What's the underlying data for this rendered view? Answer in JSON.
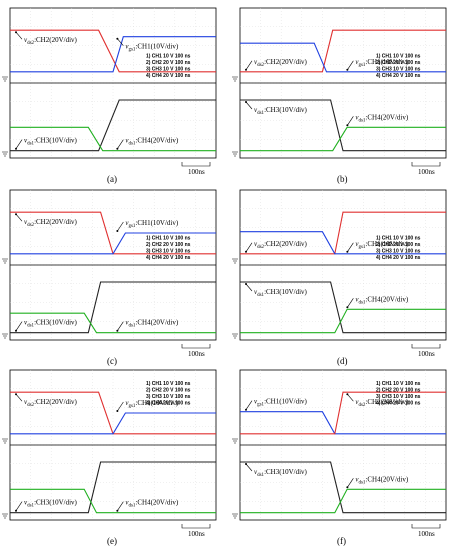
{
  "chart_data": [
    {
      "type": "line",
      "panel": "(a)",
      "time_scale": "100ns",
      "legend": [
        "1) CH1  10  V   100 ns",
        "2) CH2  20  V   100 ns",
        "3) CH3  10  V   100 ns",
        "4) CH4  20  V   100 ns"
      ],
      "channels": [
        {
          "name": "CH2",
          "color": "#e03030",
          "label": "v_{ds2}:CH2(20V/div)",
          "pane": "top",
          "levels": [
            0.72,
            0.72,
            0.08,
            0.08
          ],
          "t": [
            0,
            0.43,
            0.53,
            1
          ]
        },
        {
          "name": "CH1",
          "color": "#2040e0",
          "label": "v_{gs1}:CH1(10V/div)",
          "pane": "top",
          "levels": [
            0.08,
            0.08,
            0.62,
            0.62
          ],
          "t": [
            0,
            0.5,
            0.55,
            1
          ]
        },
        {
          "name": "CH3",
          "color": "#222222",
          "label": "v_{ds1}:CH3(10V/div)",
          "pane": "bottom",
          "levels": [
            0.02,
            0.02,
            0.8,
            0.8
          ],
          "t": [
            0,
            0.43,
            0.53,
            1
          ]
        },
        {
          "name": "CH4",
          "color": "#20b020",
          "label": "v_{ds1}:CH4(20V/div)",
          "pane": "bottom",
          "levels": [
            0.38,
            0.38,
            0.02,
            0.02
          ],
          "t": [
            0,
            0.38,
            0.45,
            1
          ]
        }
      ]
    },
    {
      "type": "line",
      "panel": "(b)",
      "time_scale": "100ns",
      "legend": [
        "1) CH1  10  V   100 ns",
        "2) CH2  20  V   100 ns",
        "3) CH3  10  V   100 ns",
        "4) CH4  20  V   100 ns"
      ],
      "channels": [
        {
          "name": "CH2",
          "color": "#e03030",
          "label": "v_{ds2}:CH2(20V/div)",
          "pane": "top",
          "levels": [
            0.08,
            0.08,
            0.72,
            0.72
          ],
          "t": [
            0,
            0.4,
            0.45,
            1
          ]
        },
        {
          "name": "CH1",
          "color": "#2040e0",
          "label": "v_{gs1}:CH1(10V/div)",
          "pane": "top",
          "levels": [
            0.52,
            0.52,
            0.08,
            0.08
          ],
          "t": [
            0,
            0.36,
            0.42,
            1
          ]
        },
        {
          "name": "CH3",
          "color": "#222222",
          "label": "v_{ds1}:CH3(10V/div)",
          "pane": "bottom",
          "levels": [
            0.8,
            0.8,
            0.02,
            0.02
          ],
          "t": [
            0,
            0.44,
            0.5,
            1
          ]
        },
        {
          "name": "CH4",
          "color": "#20b020",
          "label": "v_{ds1}:CH4(20V/div)",
          "pane": "bottom",
          "levels": [
            0.02,
            0.02,
            0.38,
            0.38
          ],
          "t": [
            0,
            0.45,
            0.52,
            1
          ]
        }
      ]
    },
    {
      "type": "line",
      "panel": "(c)",
      "time_scale": "100ns",
      "legend": [
        "1) CH1  10  V   100 ns",
        "2) CH2  20  V   100 ns",
        "3) CH3  10  V   100 ns",
        "4) CH4  20  V   100 ns"
      ],
      "channels": [
        {
          "name": "CH2",
          "color": "#e03030",
          "label": "v_{ds2}:CH2(20V/div)",
          "pane": "top",
          "levels": [
            0.72,
            0.72,
            0.08,
            0.08
          ],
          "t": [
            0,
            0.44,
            0.5,
            1
          ]
        },
        {
          "name": "CH1",
          "color": "#2040e0",
          "label": "v_{gs1}:CH1(10V/div)",
          "pane": "top",
          "levels": [
            0.08,
            0.08,
            0.4,
            0.4
          ],
          "t": [
            0,
            0.5,
            0.56,
            1
          ]
        },
        {
          "name": "CH3",
          "color": "#222222",
          "label": "v_{ds1}:CH3(10V/div)",
          "pane": "bottom",
          "levels": [
            0.02,
            0.02,
            0.8,
            0.8
          ],
          "t": [
            0,
            0.38,
            0.44,
            1
          ]
        },
        {
          "name": "CH4",
          "color": "#20b020",
          "label": "v_{ds1}:CH4(20V/div)",
          "pane": "bottom",
          "levels": [
            0.32,
            0.32,
            0.02,
            0.02
          ],
          "t": [
            0,
            0.36,
            0.42,
            1
          ]
        }
      ]
    },
    {
      "type": "line",
      "panel": "(d)",
      "time_scale": "100ns",
      "legend": [
        "1) CH1  10  V   100 ns",
        "2) CH2  20  V   100 ns",
        "3) CH3  10  V   100 ns",
        "4) CH4  20  V   100 ns"
      ],
      "channels": [
        {
          "name": "CH2",
          "color": "#e03030",
          "label": "v_{ds2}:CH2(20V/div)",
          "pane": "top",
          "levels": [
            0.08,
            0.08,
            0.72,
            0.72
          ],
          "t": [
            0,
            0.46,
            0.5,
            1
          ]
        },
        {
          "name": "CH1",
          "color": "#2040e0",
          "label": "v_{gs1}:CH1(10V/div)",
          "pane": "top",
          "levels": [
            0.42,
            0.42,
            0.08,
            0.08
          ],
          "t": [
            0,
            0.4,
            0.46,
            1
          ]
        },
        {
          "name": "CH3",
          "color": "#222222",
          "label": "v_{ds1}:CH3(10V/div)",
          "pane": "bottom",
          "levels": [
            0.8,
            0.8,
            0.02,
            0.02
          ],
          "t": [
            0,
            0.44,
            0.5,
            1
          ]
        },
        {
          "name": "CH4",
          "color": "#20b020",
          "label": "v_{ds1}:CH4(20V/div)",
          "pane": "bottom",
          "levels": [
            0.02,
            0.02,
            0.38,
            0.38
          ],
          "t": [
            0,
            0.46,
            0.52,
            1
          ]
        }
      ]
    },
    {
      "type": "line",
      "panel": "(e)",
      "time_scale": "100ns",
      "legend": [
        "1) CH1  10  V   100 ns",
        "2) CH2  20  V   100 ns",
        "3) CH3  10  V   100 ns",
        "4) CH4  20  V   100 ns"
      ],
      "channels": [
        {
          "name": "CH2",
          "color": "#e03030",
          "label": "v_{ds2}:CH2(20V/div)",
          "pane": "top",
          "levels": [
            0.72,
            0.72,
            0.08,
            0.08
          ],
          "t": [
            0,
            0.43,
            0.5,
            1
          ]
        },
        {
          "name": "CH1",
          "color": "#2040e0",
          "label": "v_{gs1}:CH1(10V/div)",
          "pane": "top",
          "levels": [
            0.08,
            0.08,
            0.4,
            0.4
          ],
          "t": [
            0,
            0.5,
            0.56,
            1
          ]
        },
        {
          "name": "CH3",
          "color": "#222222",
          "label": "v_{ds1}:CH3(10V/div)",
          "pane": "bottom",
          "levels": [
            0.02,
            0.02,
            0.8,
            0.8
          ],
          "t": [
            0,
            0.38,
            0.44,
            1
          ]
        },
        {
          "name": "CH4",
          "color": "#20b020",
          "label": "v_{ds1}:CH4(20V/div)",
          "pane": "bottom",
          "levels": [
            0.38,
            0.38,
            0.02,
            0.02
          ],
          "t": [
            0,
            0.36,
            0.42,
            1
          ]
        }
      ]
    },
    {
      "type": "line",
      "panel": "(f)",
      "time_scale": "100ns",
      "legend": [
        "1) CH1  10  V   100 ns",
        "2) CH2  20  V   100 ns",
        "3) CH3  10  V   100 ns",
        "4) CH4  20  V   100 ns"
      ],
      "channels": [
        {
          "name": "CH1",
          "color": "#2040e0",
          "label": "v_{gs1}:CH1(10V/div)",
          "pane": "top",
          "levels": [
            0.42,
            0.42,
            0.08,
            0.08
          ],
          "t": [
            0,
            0.4,
            0.46,
            1
          ]
        },
        {
          "name": "CH2",
          "color": "#e03030",
          "label": "v_{ds2}:CH2(20V/div)",
          "pane": "top",
          "levels": [
            0.08,
            0.08,
            0.72,
            0.72
          ],
          "t": [
            0,
            0.46,
            0.5,
            1
          ]
        },
        {
          "name": "CH3",
          "color": "#222222",
          "label": "v_{ds1}:CH3(10V/div)",
          "pane": "bottom",
          "levels": [
            0.8,
            0.8,
            0.02,
            0.02
          ],
          "t": [
            0,
            0.44,
            0.5,
            1
          ]
        },
        {
          "name": "CH4",
          "color": "#20b020",
          "label": "v_{ds1}:CH4(20V/div)",
          "pane": "bottom",
          "levels": [
            0.02,
            0.02,
            0.38,
            0.38
          ],
          "t": [
            0,
            0.46,
            0.52,
            1
          ]
        }
      ]
    }
  ]
}
